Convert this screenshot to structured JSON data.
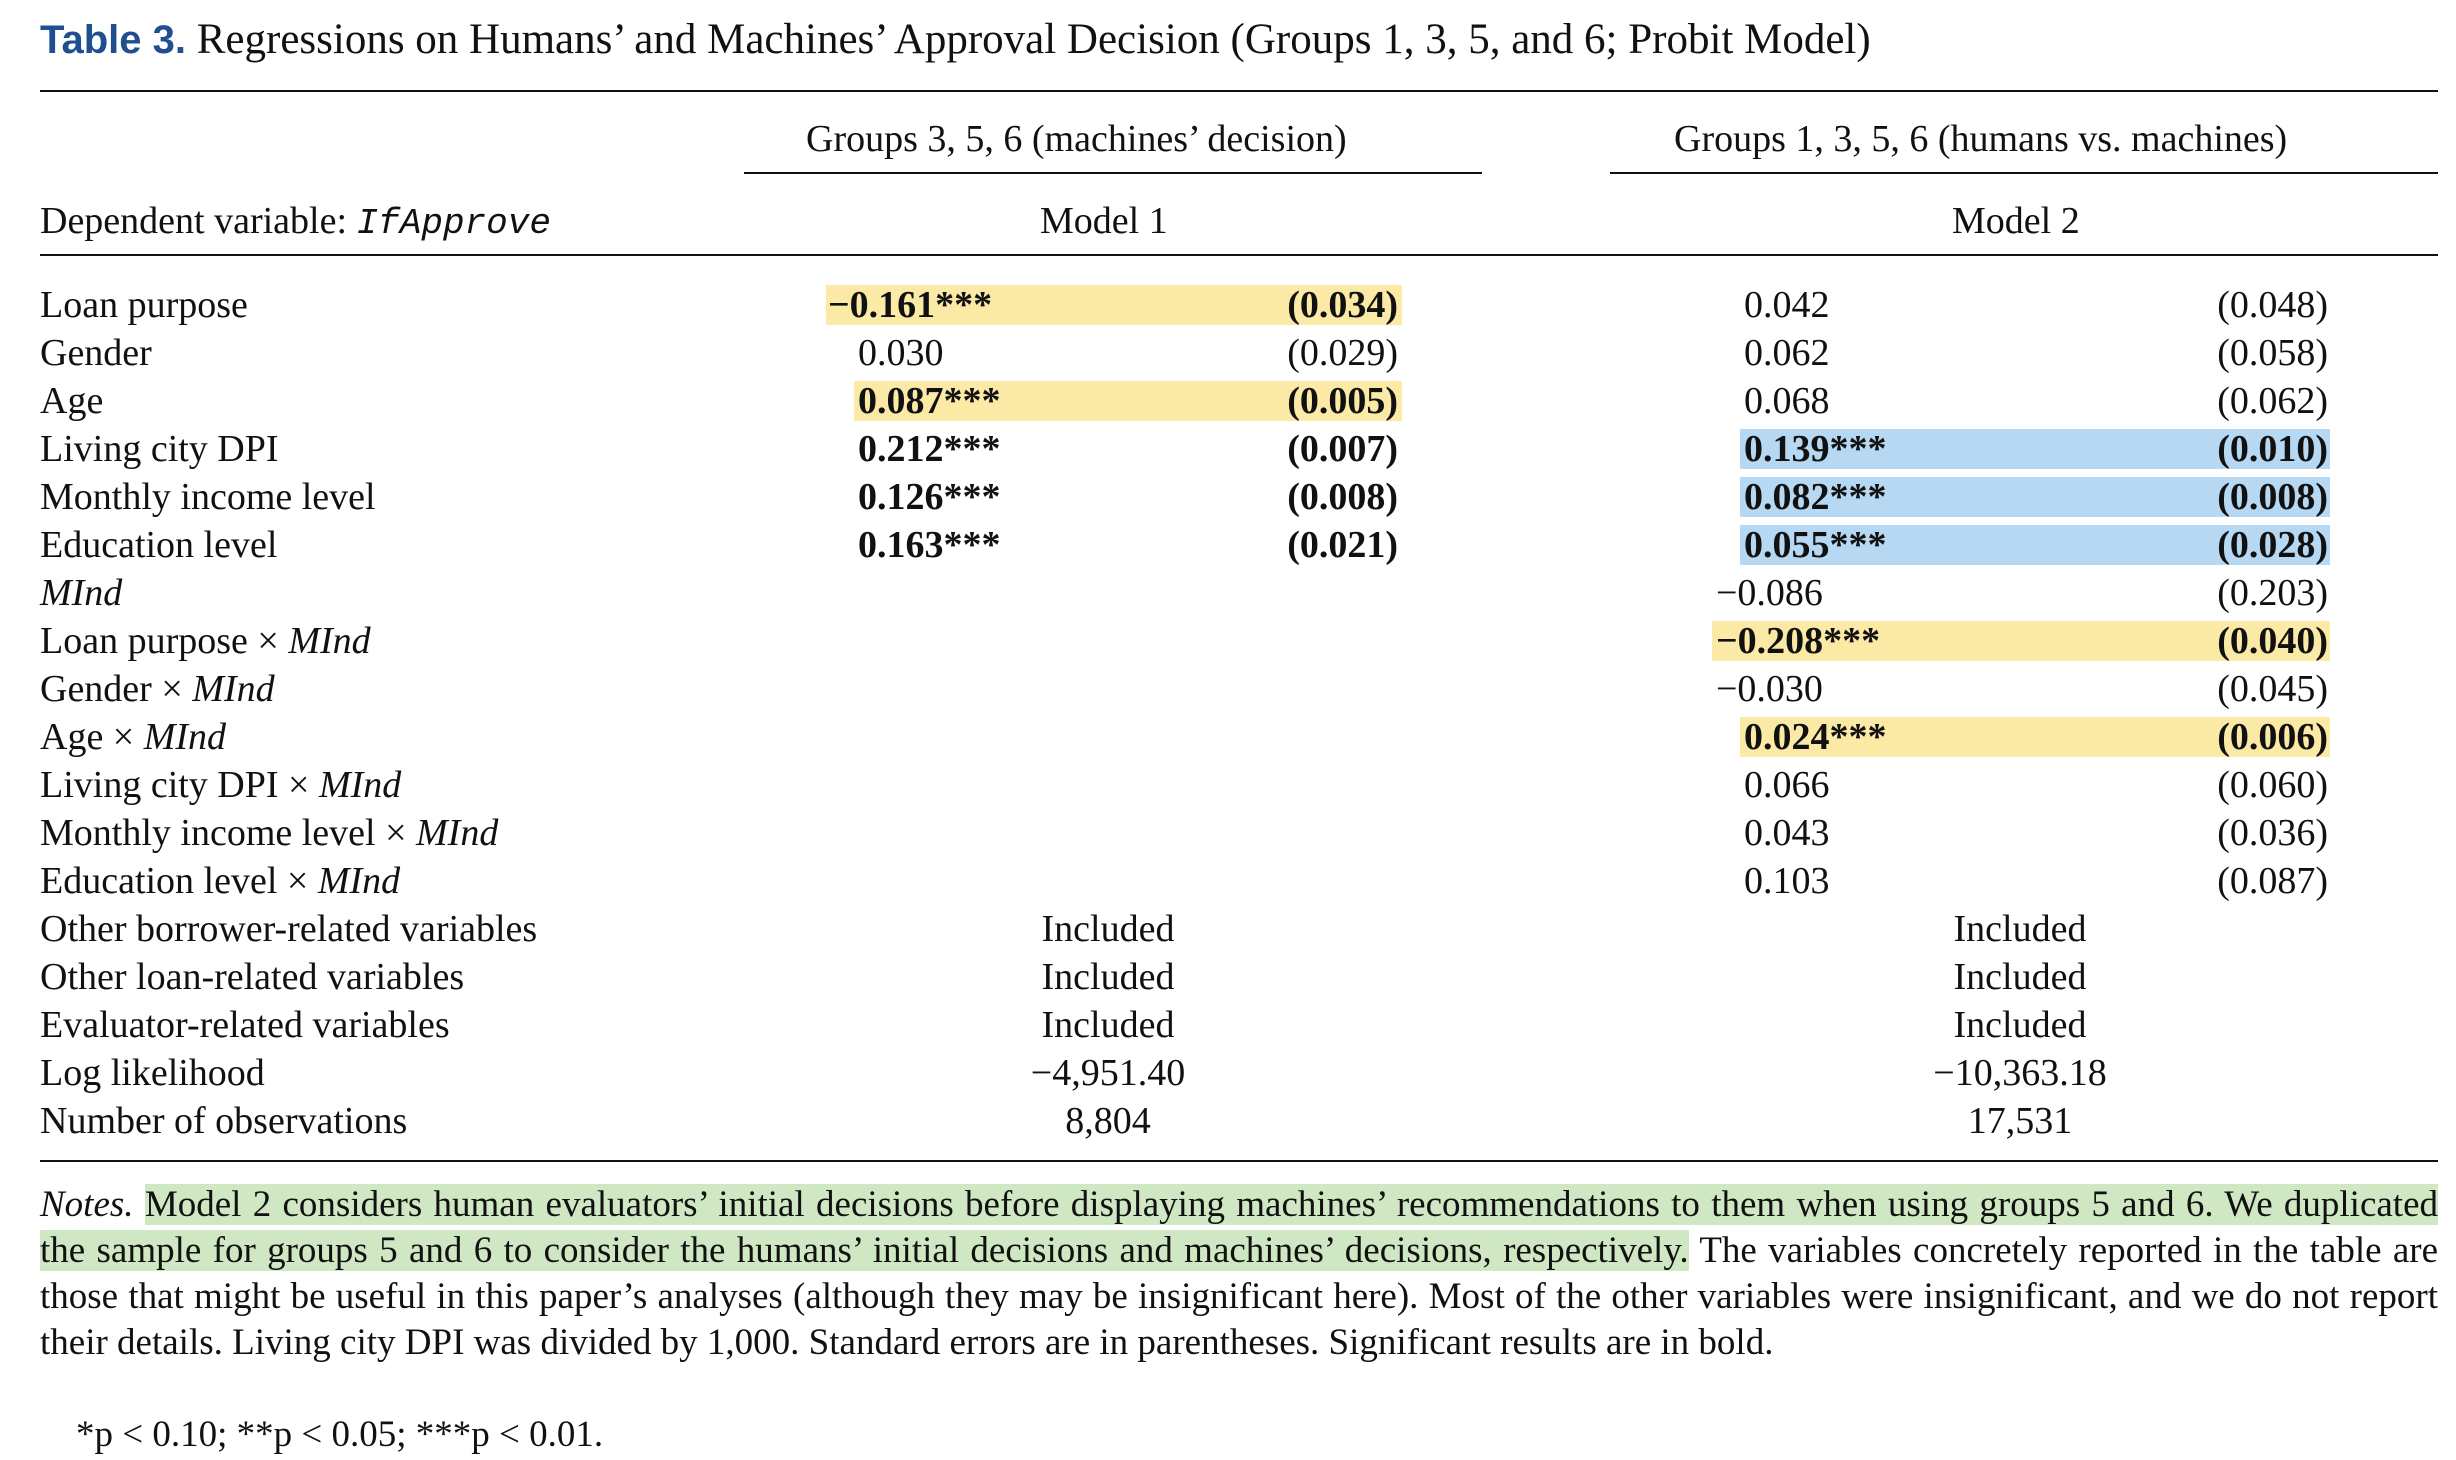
{
  "title": {
    "label": "Table 3.",
    "text": "Regressions on Humans’ and Machines’ Approval Decision (Groups 1, 3, 5, and 6; Probit Model)"
  },
  "header": {
    "group1": "Groups 3, 5, 6 (machines’ decision)",
    "group2": "Groups 1, 3, 5, 6 (humans vs. machines)",
    "dv_label": "Dependent variable:",
    "dv_var": "IfApprove",
    "model1": "Model 1",
    "model2": "Model 2"
  },
  "rows": [
    {
      "var": "Loan purpose",
      "var_italic": "",
      "m1_coef": "−0.161***",
      "m1_se": "(0.034)",
      "m2_coef": "0.042",
      "m2_se": "(0.048)"
    },
    {
      "var": "Gender",
      "var_italic": "",
      "m1_coef": "0.030",
      "m1_se": "(0.029)",
      "m2_coef": "0.062",
      "m2_se": "(0.058)"
    },
    {
      "var": "Age",
      "var_italic": "",
      "m1_coef": "0.087***",
      "m1_se": "(0.005)",
      "m2_coef": "0.068",
      "m2_se": "(0.062)"
    },
    {
      "var": "Living city DPI",
      "var_italic": "",
      "m1_coef": "0.212***",
      "m1_se": "(0.007)",
      "m2_coef": "0.139***",
      "m2_se": "(0.010)"
    },
    {
      "var": "Monthly income level",
      "var_italic": "",
      "m1_coef": "0.126***",
      "m1_se": "(0.008)",
      "m2_coef": "0.082***",
      "m2_se": "(0.008)"
    },
    {
      "var": "Education level",
      "var_italic": "",
      "m1_coef": "0.163***",
      "m1_se": "(0.021)",
      "m2_coef": "0.055***",
      "m2_se": "(0.028)"
    },
    {
      "var": "",
      "var_italic": "MInd",
      "m1_coef": "",
      "m1_se": "",
      "m2_coef": "−0.086",
      "m2_se": "(0.203)"
    },
    {
      "var": "Loan purpose × ",
      "var_italic": "MInd",
      "m1_coef": "",
      "m1_se": "",
      "m2_coef": "−0.208***",
      "m2_se": "(0.040)"
    },
    {
      "var": "Gender × ",
      "var_italic": "MInd",
      "m1_coef": "",
      "m1_se": "",
      "m2_coef": "−0.030",
      "m2_se": "(0.045)"
    },
    {
      "var": "Age × ",
      "var_italic": "MInd",
      "m1_coef": "",
      "m1_se": "",
      "m2_coef": "0.024***",
      "m2_se": "(0.006)"
    },
    {
      "var": "Living city DPI × ",
      "var_italic": "MInd",
      "m1_coef": "",
      "m1_se": "",
      "m2_coef": "0.066",
      "m2_se": "(0.060)"
    },
    {
      "var": "Monthly income level × ",
      "var_italic": "MInd",
      "m1_coef": "",
      "m1_se": "",
      "m2_coef": "0.043",
      "m2_se": "(0.036)"
    },
    {
      "var": "Education level × ",
      "var_italic": "MInd",
      "m1_coef": "",
      "m1_se": "",
      "m2_coef": "0.103",
      "m2_se": "(0.087)"
    }
  ],
  "summary_rows": [
    {
      "var": "Other borrower-related variables",
      "m1": "Included",
      "m2": "Included"
    },
    {
      "var": "Other loan-related variables",
      "m1": "Included",
      "m2": "Included"
    },
    {
      "var": "Evaluator-related variables",
      "m1": "Included",
      "m2": "Included"
    },
    {
      "var": "Log likelihood",
      "m1": "−4,951.40",
      "m2": "−10,363.18"
    },
    {
      "var": "Number of observations",
      "m1": "8,804",
      "m2": "17,531"
    }
  ],
  "notes": {
    "label": "Notes.",
    "highlighted": "Model 2 considers human evaluators’ initial decisions before displaying machines’ recommendations to them when using groups 5 and 6. We duplicated the sample for groups 5 and 6 to consider the humans’ initial decisions and machines’ decisions, respectively.",
    "rest": " The variables concretely reported in the table are those that might be useful in this paper’s analyses (although they may be insignificant here). Most of the other variables were insignificant, and we do not report their details. Living city DPI was divided by 1,000. Standard errors are in parentheses. Significant results are in bold."
  },
  "significance": "*p < 0.10; **p < 0.05; ***p < 0.01.",
  "colors": {
    "title_label": "#1f4f8f",
    "highlight_yellow": "#fbe9a6",
    "highlight_blue": "#b6d8f2",
    "highlight_green": "#cfe7c2"
  }
}
